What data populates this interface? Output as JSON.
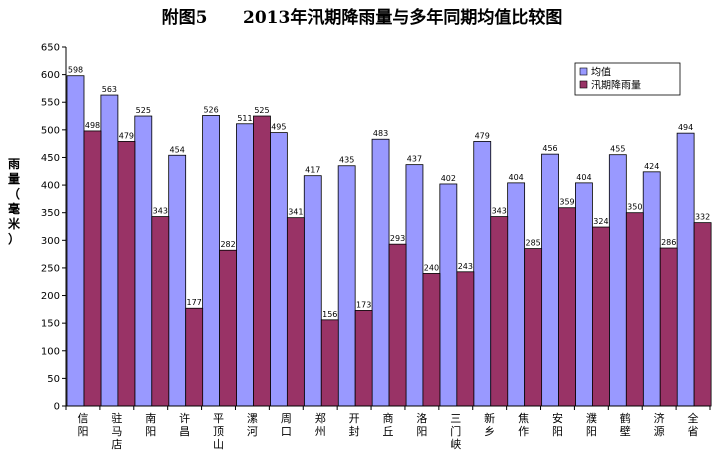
{
  "chart_data": {
    "type": "bar",
    "title": "附图5      2013年汛期降雨量与多年同期均值比较图",
    "ylabel": "雨量（毫米）",
    "ylim": [
      0,
      650
    ],
    "yticks": [
      0,
      50,
      100,
      150,
      200,
      250,
      300,
      350,
      400,
      450,
      500,
      550,
      600,
      650
    ],
    "legend_position": "top-right",
    "categories": [
      "信阳",
      "驻马店",
      "南阳",
      "许昌",
      "平顶山",
      "漯河",
      "周口",
      "郑州",
      "开封",
      "商丘",
      "洛阳",
      "三门峡",
      "新乡",
      "焦作",
      "安阳",
      "濮阳",
      "鹤壁",
      "济源",
      "全省"
    ],
    "series": [
      {
        "name": "均值",
        "color": "#9999ff",
        "values": [
          598,
          563,
          525,
          454,
          526,
          511,
          495,
          417,
          435,
          483,
          437,
          402,
          479,
          404,
          456,
          404,
          455,
          424,
          494
        ]
      },
      {
        "name": "汛期降雨量",
        "color": "#993366",
        "values": [
          498,
          479,
          343,
          177,
          282,
          525,
          341,
          156,
          173,
          293,
          240,
          243,
          343,
          285,
          359,
          324,
          350,
          286,
          332
        ]
      }
    ]
  }
}
